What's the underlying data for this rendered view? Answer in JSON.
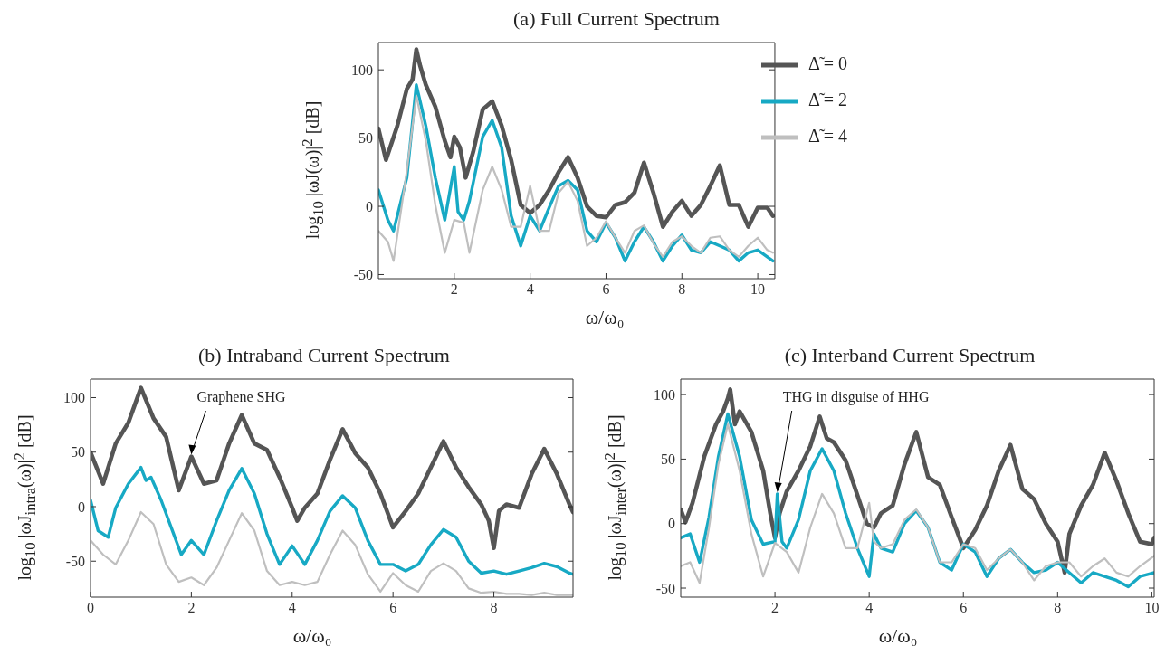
{
  "chart_data": [
    {
      "type": "line",
      "title": "(a) Full Current Spectrum",
      "xlabel": "ω/ω₀",
      "ylabel": "log$_{10}$ |ωJ(ω)|$^{2}$ [dB]",
      "xlim": [
        0,
        10.45
      ],
      "xticks": [
        2,
        4,
        6,
        8,
        10
      ],
      "ylim": [
        -53,
        120
      ],
      "yticks": [
        -50,
        0,
        50,
        100
      ],
      "legend": "top right",
      "grid": false,
      "series": [
        {
          "name": "Δ̃ = 0",
          "color": "#555555",
          "x": [
            0,
            0.2,
            0.5,
            0.75,
            0.9,
            1.0,
            1.1,
            1.25,
            1.5,
            1.75,
            1.9,
            2.0,
            2.15,
            2.3,
            2.5,
            2.75,
            3.0,
            3.25,
            3.5,
            3.75,
            4.0,
            4.25,
            4.5,
            4.75,
            5.0,
            5.25,
            5.5,
            5.75,
            6.0,
            6.25,
            6.5,
            6.75,
            7.0,
            7.25,
            7.5,
            7.75,
            8.0,
            8.25,
            8.5,
            8.75,
            9.0,
            9.25,
            9.5,
            9.75,
            10.0,
            10.25,
            10.4
          ],
          "values": [
            57,
            34,
            59,
            86,
            93,
            115,
            103,
            89,
            73,
            48,
            36,
            51,
            43,
            21,
            40,
            71,
            77,
            59,
            34,
            1,
            -5,
            1,
            12,
            25,
            36,
            21,
            0,
            -7,
            -8,
            1,
            3,
            10,
            32,
            10,
            -15,
            -4,
            4,
            -7,
            1,
            15,
            30,
            1,
            1,
            -15,
            -1,
            -1,
            -7
          ]
        },
        {
          "name": "Δ̃ = 2",
          "color": "#17a9c4",
          "x": [
            0,
            0.25,
            0.4,
            0.75,
            1.0,
            1.25,
            1.5,
            1.75,
            2.0,
            2.1,
            2.25,
            2.4,
            2.75,
            3.0,
            3.25,
            3.5,
            3.75,
            4.0,
            4.25,
            4.5,
            4.75,
            5.0,
            5.25,
            5.5,
            5.75,
            6.0,
            6.25,
            6.5,
            6.75,
            7.0,
            7.25,
            7.5,
            7.75,
            8.0,
            8.25,
            8.5,
            8.75,
            9.0,
            9.25,
            9.5,
            9.75,
            10.0,
            10.25,
            10.4
          ],
          "values": [
            12,
            -10,
            -18,
            21,
            89,
            59,
            21,
            -10,
            29,
            -4,
            -10,
            4,
            51,
            63,
            43,
            -7,
            -29,
            -7,
            -18,
            -1,
            15,
            19,
            12,
            -18,
            -26,
            -12,
            -23,
            -40,
            -26,
            -15,
            -26,
            -40,
            -29,
            -21,
            -32,
            -34,
            -26,
            -29,
            -32,
            -40,
            -34,
            -32,
            -37,
            -40
          ]
        },
        {
          "name": "Δ̃ = 4",
          "color": "#bfbfbf",
          "x": [
            0,
            0.25,
            0.4,
            0.75,
            1.0,
            1.25,
            1.5,
            1.75,
            2.0,
            2.25,
            2.4,
            2.75,
            3.0,
            3.25,
            3.5,
            3.75,
            4.0,
            4.25,
            4.5,
            4.75,
            5.0,
            5.25,
            5.5,
            5.75,
            6.0,
            6.25,
            6.5,
            6.75,
            7.0,
            7.25,
            7.5,
            7.75,
            8.0,
            8.25,
            8.5,
            8.75,
            9.0,
            9.25,
            9.5,
            9.75,
            10.0,
            10.25,
            10.4
          ],
          "values": [
            -18,
            -26,
            -40,
            26,
            81,
            48,
            1,
            -34,
            -10,
            -12,
            -34,
            12,
            29,
            12,
            -15,
            -15,
            15,
            -18,
            -18,
            10,
            18,
            4,
            -29,
            -23,
            -11,
            -23,
            -34,
            -18,
            -14,
            -27,
            -37,
            -26,
            -22,
            -29,
            -34,
            -23,
            -22,
            -32,
            -37,
            -29,
            -23,
            -32,
            -34
          ]
        }
      ]
    },
    {
      "type": "line",
      "title": "(b) Intraband Current Spectrum",
      "xlabel": "ω/ω₀",
      "ylabel": "log$_{10}$ |ωJ$_{intra}$(ω)|$^{2}$ [dB]",
      "xlim": [
        0,
        9.57
      ],
      "xticks": [
        0,
        2,
        4,
        6,
        8
      ],
      "ylim": [
        -83,
        117
      ],
      "yticks": [
        -50,
        0,
        50,
        100
      ],
      "grid": false,
      "annotations": [
        {
          "text": "Graphene SHG",
          "x": 2.0,
          "y": 46
        }
      ],
      "series": [
        {
          "color": "#555555",
          "x": [
            0,
            0.25,
            0.5,
            0.75,
            1.0,
            1.25,
            1.5,
            1.75,
            2.0,
            2.25,
            2.5,
            2.75,
            3.0,
            3.25,
            3.5,
            3.75,
            4.0,
            4.1,
            4.25,
            4.5,
            4.75,
            5.0,
            5.25,
            5.5,
            5.75,
            6.0,
            6.25,
            6.5,
            6.75,
            7.0,
            7.25,
            7.5,
            7.75,
            7.9,
            8.0,
            8.1,
            8.25,
            8.5,
            8.75,
            9.0,
            9.25,
            9.5,
            9.57
          ],
          "values": [
            50,
            21,
            58,
            77,
            109,
            81,
            64,
            15,
            46,
            21,
            24,
            58,
            84,
            58,
            52,
            27,
            -1,
            -13,
            -1,
            12,
            43,
            71,
            49,
            36,
            12,
            -19,
            -4,
            12,
            36,
            60,
            36,
            18,
            2,
            -13,
            -38,
            -4,
            2,
            -1,
            30,
            53,
            30,
            2,
            -5
          ]
        },
        {
          "color": "#17a9c4",
          "x": [
            0,
            0.15,
            0.35,
            0.5,
            0.75,
            1.0,
            1.1,
            1.2,
            1.4,
            1.6,
            1.8,
            2.0,
            2.25,
            2.5,
            2.75,
            3.0,
            3.25,
            3.5,
            3.75,
            4.0,
            4.25,
            4.5,
            4.75,
            5.0,
            5.25,
            5.5,
            5.75,
            6.0,
            6.25,
            6.5,
            6.75,
            7.0,
            7.25,
            7.5,
            7.75,
            8.0,
            8.25,
            8.5,
            8.75,
            9.0,
            9.25,
            9.5,
            9.57
          ],
          "values": [
            6,
            -22,
            -28,
            -1,
            21,
            36,
            24,
            27,
            6,
            -19,
            -44,
            -31,
            -44,
            -13,
            15,
            35,
            12,
            -25,
            -53,
            -36,
            -53,
            -31,
            -4,
            10,
            -1,
            -31,
            -53,
            -53,
            -59,
            -53,
            -35,
            -21,
            -28,
            -50,
            -61,
            -59,
            -62,
            -59,
            -56,
            -52,
            -55,
            -61,
            -62
          ]
        },
        {
          "color": "#bfbfbf",
          "x": [
            0,
            0.25,
            0.5,
            0.75,
            1.0,
            1.25,
            1.5,
            1.75,
            2.0,
            2.25,
            2.5,
            2.75,
            3.0,
            3.25,
            3.5,
            3.75,
            4.0,
            4.25,
            4.5,
            4.75,
            5.0,
            5.25,
            5.5,
            5.75,
            6.0,
            6.25,
            6.5,
            6.75,
            7.0,
            7.25,
            7.5,
            7.75,
            8.0,
            8.25,
            8.5,
            8.75,
            9.0,
            9.25,
            9.57
          ],
          "values": [
            -31,
            -44,
            -53,
            -31,
            -5,
            -16,
            -53,
            -69,
            -65,
            -72,
            -56,
            -31,
            -6,
            -22,
            -59,
            -72,
            -69,
            -72,
            -69,
            -44,
            -22,
            -35,
            -62,
            -78,
            -61,
            -72,
            -78,
            -59,
            -52,
            -59,
            -75,
            -79,
            -78,
            -80,
            -80,
            -81,
            -79,
            -81,
            -81
          ]
        }
      ]
    },
    {
      "type": "line",
      "title": "(c) Interband Current Spectrum",
      "xlabel": "ω/ω₀",
      "ylabel": "log$_{10}$ |ωJ$_{inter}$(ω)|$^{2}$ [dB]",
      "xlim": [
        0,
        10.05
      ],
      "xticks": [
        2,
        4,
        6,
        8,
        10
      ],
      "ylim": [
        -57,
        112
      ],
      "yticks": [
        -50,
        0,
        50,
        100
      ],
      "grid": false,
      "annotations": [
        {
          "text": "THG in disguise of HHG",
          "x": 2.05,
          "y": 23
        }
      ],
      "series": [
        {
          "color": "#555555",
          "x": [
            0,
            0.1,
            0.25,
            0.5,
            0.75,
            0.9,
            1.0,
            1.05,
            1.15,
            1.25,
            1.5,
            1.75,
            1.9,
            2.0,
            2.1,
            2.25,
            2.5,
            2.75,
            2.95,
            3.1,
            3.25,
            3.5,
            3.75,
            3.95,
            4.1,
            4.25,
            4.5,
            4.75,
            5.0,
            5.25,
            5.5,
            5.75,
            6.0,
            6.25,
            6.5,
            6.75,
            7.0,
            7.25,
            7.5,
            7.75,
            8.0,
            8.15,
            8.25,
            8.5,
            8.75,
            9.0,
            9.25,
            9.5,
            9.75,
            10.0,
            10.05
          ],
          "values": [
            11,
            1,
            16,
            52,
            77,
            87,
            97,
            104,
            77,
            87,
            71,
            41,
            8,
            -11,
            8,
            25,
            41,
            60,
            83,
            66,
            63,
            49,
            22,
            0,
            -3,
            8,
            14,
            46,
            71,
            36,
            30,
            5,
            -19,
            -5,
            14,
            41,
            61,
            27,
            19,
            0,
            -14,
            -38,
            -8,
            14,
            30,
            55,
            33,
            8,
            -14,
            -16,
            -11
          ]
        },
        {
          "color": "#17a9c4",
          "x": [
            0,
            0.2,
            0.4,
            0.6,
            0.8,
            1.0,
            1.25,
            1.5,
            1.75,
            2.0,
            2.05,
            2.15,
            2.25,
            2.5,
            2.75,
            3.0,
            3.25,
            3.5,
            3.75,
            4.0,
            4.1,
            4.25,
            4.5,
            4.75,
            5.0,
            5.25,
            5.5,
            5.75,
            6.0,
            6.25,
            6.5,
            6.75,
            7.0,
            7.25,
            7.5,
            7.75,
            8.0,
            8.25,
            8.5,
            8.75,
            9.0,
            9.25,
            9.5,
            9.75,
            10.05
          ],
          "values": [
            -11,
            -8,
            -30,
            5,
            52,
            85,
            52,
            3,
            -16,
            -14,
            23,
            -14,
            -19,
            3,
            41,
            58,
            41,
            8,
            -19,
            -41,
            -8,
            -19,
            -22,
            0,
            10,
            -3,
            -30,
            -36,
            -16,
            -22,
            -41,
            -27,
            -20,
            -30,
            -38,
            -36,
            -30,
            -38,
            -46,
            -38,
            -41,
            -44,
            -49,
            -41,
            -38
          ]
        },
        {
          "color": "#bfbfbf",
          "x": [
            0,
            0.2,
            0.4,
            0.6,
            0.8,
            1.0,
            1.25,
            1.5,
            1.75,
            2.0,
            2.25,
            2.5,
            2.75,
            3.0,
            3.25,
            3.5,
            3.75,
            4.0,
            4.1,
            4.25,
            4.5,
            4.75,
            5.0,
            5.25,
            5.5,
            5.75,
            6.0,
            6.25,
            6.5,
            6.75,
            7.0,
            7.25,
            7.5,
            7.75,
            8.0,
            8.25,
            8.5,
            8.75,
            9.0,
            9.25,
            9.5,
            9.75,
            10.05
          ],
          "values": [
            -33,
            -30,
            -46,
            -3,
            46,
            77,
            41,
            -8,
            -41,
            -15,
            -22,
            -38,
            -3,
            23,
            8,
            -19,
            -19,
            16,
            -14,
            -19,
            -16,
            3,
            11,
            -3,
            -30,
            -30,
            -16,
            -19,
            -36,
            -27,
            -20,
            -30,
            -44,
            -33,
            -30,
            -30,
            -41,
            -33,
            -27,
            -38,
            -41,
            -33,
            -25
          ]
        }
      ]
    }
  ]
}
